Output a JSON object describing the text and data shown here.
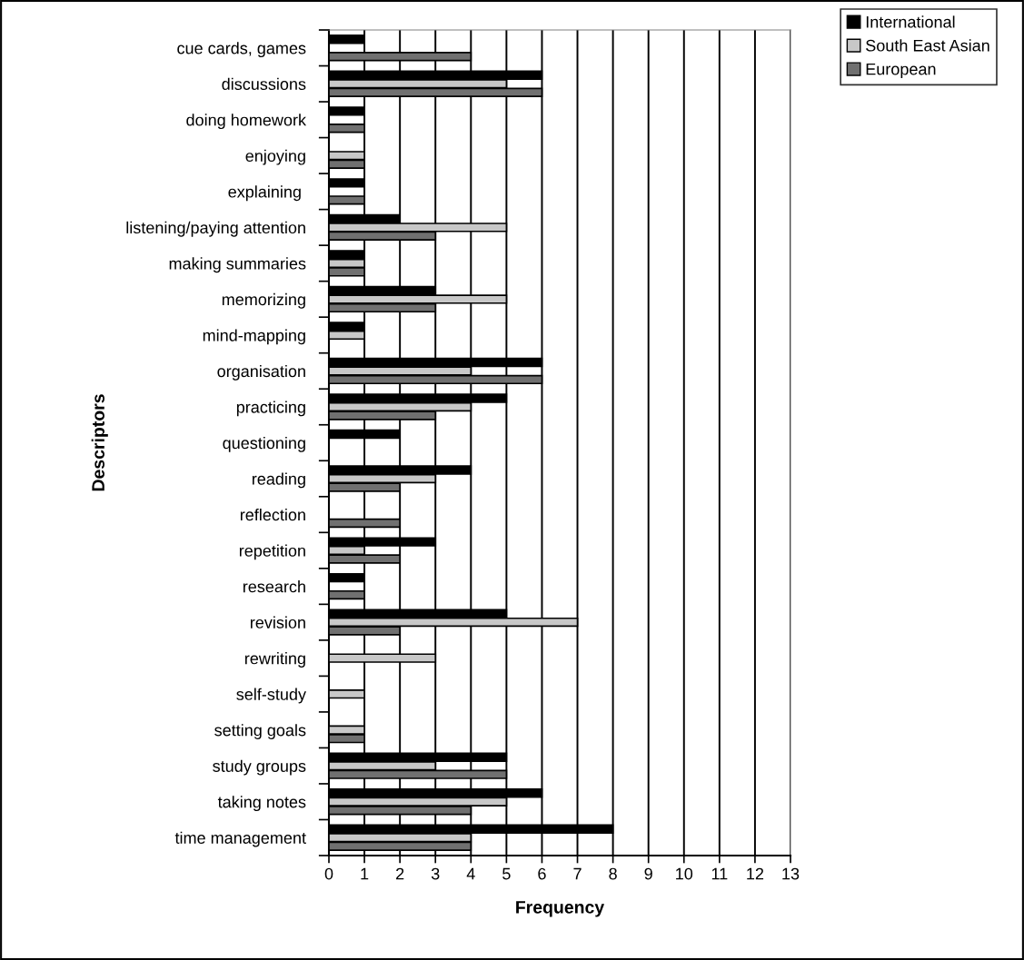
{
  "chart_data": {
    "type": "bar",
    "orientation": "horizontal",
    "xlabel": "Frequency",
    "ylabel": "Descriptors",
    "categories": [
      "cue cards, games",
      "discussions",
      "doing homework",
      "enjoying",
      "explaining ",
      "listening/paying attention",
      "making summaries",
      "memorizing",
      "mind-mapping",
      "organisation",
      "practicing",
      "questioning",
      "reading",
      "reflection",
      "repetition",
      "research",
      "revision",
      "rewriting",
      "self-study",
      "setting goals",
      "study groups",
      "taking notes",
      "time management"
    ],
    "series": [
      {
        "name": "International",
        "color": "#000000",
        "values": [
          1,
          6,
          1,
          null,
          1,
          2,
          1,
          3,
          1,
          6,
          5,
          2,
          4,
          null,
          3,
          1,
          5,
          null,
          null,
          null,
          5,
          6,
          8
        ]
      },
      {
        "name": "South East Asian",
        "color": "#c8c8c8",
        "values": [
          null,
          5,
          null,
          1,
          null,
          5,
          1,
          5,
          1,
          4,
          4,
          null,
          3,
          null,
          1,
          null,
          7,
          3,
          1,
          1,
          3,
          5,
          4
        ]
      },
      {
        "name": "European",
        "color": "#707070",
        "values": [
          4,
          6,
          1,
          1,
          1,
          3,
          1,
          3,
          null,
          6,
          3,
          null,
          2,
          2,
          2,
          1,
          2,
          null,
          null,
          1,
          5,
          4,
          4
        ]
      }
    ],
    "xlim": [
      0,
      13
    ],
    "xticks": [
      0,
      1,
      2,
      3,
      4,
      5,
      6,
      7,
      8,
      9,
      10,
      11,
      12,
      13
    ],
    "grid": "x",
    "legend": "top right"
  }
}
